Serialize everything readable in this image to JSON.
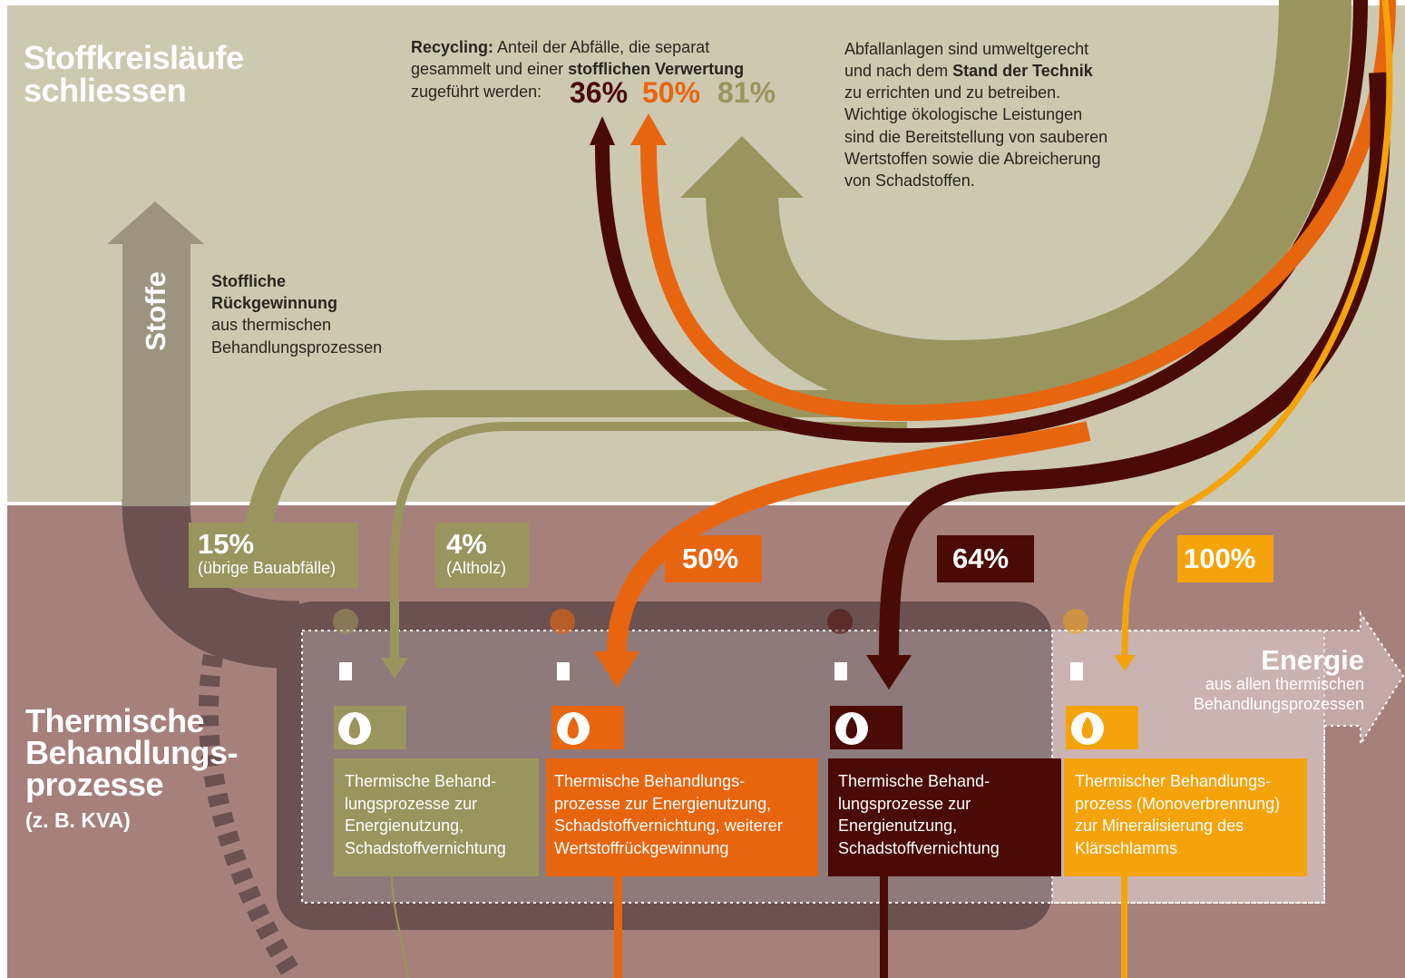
{
  "header": {
    "title_lines": [
      "Stoffkreisläufe",
      "schliessen"
    ]
  },
  "recycling": {
    "label": "Recycling:",
    "line1": "Anteil der Abfälle, die separat",
    "line2a": "gesammelt und einer",
    "line2b": "stofflichen Verwertung",
    "line3": "zugeführt werden:",
    "rates": [
      "36%",
      "50%",
      "81%"
    ]
  },
  "standards": {
    "line1": "Abfallanlagen sind umweltgerecht",
    "line2a": "und nach dem",
    "line2b": "Stand der Technik",
    "lines": [
      "zu errichten und zu betreiben.",
      "Wichtige ökologische Leistungen",
      "sind die Bereitstellung von sauberen",
      "Wertstoffen sowie die Abreicherung",
      "von Schadstoffen."
    ]
  },
  "stoffe": {
    "arrow_label": "Stoffe",
    "bold_lines": [
      "Stoffliche",
      "Rückgewinnung"
    ],
    "lines": [
      "aus thermischen",
      "Behandlungsprozessen"
    ]
  },
  "badges": [
    {
      "value": "15%",
      "note": "(übrige Bauabfälle)"
    },
    {
      "value": "4%",
      "note": "(Altholz)"
    },
    {
      "value": "50%"
    },
    {
      "value": "64%"
    },
    {
      "value": "100%"
    }
  ],
  "energie": {
    "title": "Energie",
    "lines": [
      "aus allen thermischen",
      "Behandlungsprozessen"
    ]
  },
  "section": {
    "title_lines": [
      "Thermische",
      "Behandlungs-",
      "prozesse"
    ],
    "subtitle": "(z. B. KVA)"
  },
  "processes": [
    {
      "lines": [
        "Thermische Behand-",
        "lungsprozesse zur",
        "Energienutzung,",
        "Schadstoffvernichtung"
      ]
    },
    {
      "lines": [
        "Thermische Behandlungs-",
        "prozesse zur Energienutzung,",
        "Schadstoffvernichtung, weiterer",
        "Wertstoffrückgewinnung"
      ]
    },
    {
      "lines": [
        "Thermische Behand-",
        "lungsprozesse zur",
        "Energienutzung,",
        "Schadstoffvernichtung"
      ]
    },
    {
      "lines": [
        "Thermischer Behandlungs-",
        "prozess (Monoverbrennung)",
        "zur Mineralisierung des",
        "Klärschlamms"
      ]
    }
  ]
}
